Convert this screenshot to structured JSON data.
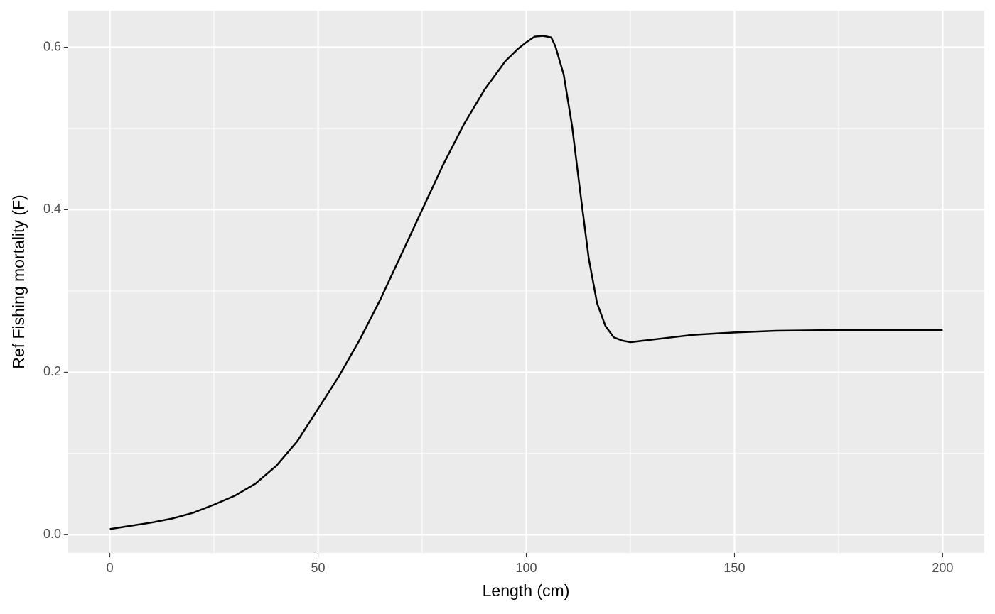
{
  "chart_data": {
    "type": "line",
    "x_label": "Length (cm)",
    "y_label": "Ref Fishing mortality (F)",
    "x": [
      0,
      5,
      10,
      15,
      20,
      25,
      30,
      35,
      40,
      45,
      50,
      55,
      60,
      65,
      70,
      75,
      80,
      85,
      90,
      95,
      98,
      100,
      102,
      104,
      106,
      107,
      109,
      111,
      113,
      115,
      117,
      119,
      121,
      123,
      125,
      130,
      135,
      140,
      150,
      160,
      175,
      200
    ],
    "series": [
      {
        "color": "#000000",
        "values": [
          0.007,
          0.011,
          0.015,
          0.02,
          0.027,
          0.037,
          0.048,
          0.063,
          0.085,
          0.115,
          0.155,
          0.195,
          0.24,
          0.29,
          0.345,
          0.4,
          0.455,
          0.505,
          0.548,
          0.583,
          0.598,
          0.606,
          0.613,
          0.614,
          0.612,
          0.601,
          0.566,
          0.503,
          0.42,
          0.34,
          0.285,
          0.257,
          0.243,
          0.239,
          0.237,
          0.24,
          0.243,
          0.246,
          0.249,
          0.251,
          0.252,
          0.252
        ]
      }
    ],
    "xlim": [
      -10,
      210
    ],
    "ylim": [
      -0.0224,
      0.645
    ],
    "xticks": [
      0,
      50,
      100,
      150,
      200
    ],
    "yticks": [
      {
        "value": 0,
        "label": "0.0"
      },
      0.2,
      0.4,
      0.6
    ],
    "minor_xticks": [
      25,
      75,
      125,
      175
    ],
    "minor_yticks": [
      0.1,
      0.3,
      0.5
    ],
    "grid": true
  }
}
